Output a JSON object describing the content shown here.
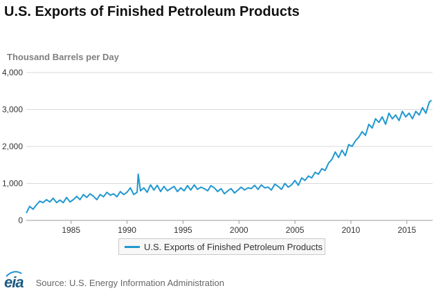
{
  "header": {
    "title": "U.S. Exports of Finished Petroleum Products"
  },
  "footer": {
    "logo_text": "eia",
    "source": "Source: U.S. Energy Information Administration"
  },
  "chart_data": {
    "type": "line",
    "title": "U.S. Exports of Finished Petroleum Products",
    "ylabel": "Thousand Barrels per Day",
    "xlabel": "",
    "xlim": [
      1981,
      2017.3
    ],
    "ylim": [
      0,
      4000
    ],
    "grid": true,
    "legend_position": "bottom",
    "x_ticks": [
      1985,
      1990,
      1995,
      2000,
      2005,
      2010,
      2015
    ],
    "y_ticks": [
      0,
      1000,
      2000,
      3000,
      4000
    ],
    "y_tick_labels": [
      "0",
      "1,000",
      "2,000",
      "3,000",
      "4,000"
    ],
    "series": [
      {
        "name": "U.S. Exports of Finished Petroleum Products",
        "color": "#1f97d0",
        "x": [
          1981.0,
          1981.3,
          1981.6,
          1981.9,
          1982.2,
          1982.5,
          1982.8,
          1983.1,
          1983.4,
          1983.7,
          1984.0,
          1984.3,
          1984.6,
          1984.9,
          1985.2,
          1985.5,
          1985.8,
          1986.1,
          1986.4,
          1986.7,
          1987.0,
          1987.3,
          1987.6,
          1987.9,
          1988.2,
          1988.5,
          1988.8,
          1989.1,
          1989.4,
          1989.7,
          1990.0,
          1990.3,
          1990.6,
          1990.9,
          1991.0,
          1991.2,
          1991.5,
          1991.8,
          1992.1,
          1992.4,
          1992.7,
          1993.0,
          1993.3,
          1993.6,
          1993.9,
          1994.2,
          1994.5,
          1994.8,
          1995.1,
          1995.4,
          1995.7,
          1996.0,
          1996.3,
          1996.6,
          1996.9,
          1997.2,
          1997.5,
          1997.8,
          1998.1,
          1998.4,
          1998.7,
          1999.0,
          1999.3,
          1999.6,
          1999.9,
          2000.2,
          2000.5,
          2000.8,
          2001.1,
          2001.4,
          2001.7,
          2002.0,
          2002.3,
          2002.6,
          2002.9,
          2003.2,
          2003.5,
          2003.8,
          2004.1,
          2004.4,
          2004.7,
          2005.0,
          2005.3,
          2005.6,
          2005.9,
          2006.2,
          2006.5,
          2006.8,
          2007.1,
          2007.4,
          2007.7,
          2008.0,
          2008.3,
          2008.6,
          2008.9,
          2009.2,
          2009.5,
          2009.8,
          2010.1,
          2010.4,
          2010.7,
          2011.0,
          2011.3,
          2011.6,
          2011.9,
          2012.2,
          2012.5,
          2012.8,
          2013.1,
          2013.4,
          2013.7,
          2014.0,
          2014.3,
          2014.6,
          2014.9,
          2015.2,
          2015.5,
          2015.8,
          2016.1,
          2016.4,
          2016.7,
          2017.0,
          2017.2
        ],
        "values": [
          200,
          380,
          300,
          420,
          520,
          480,
          560,
          500,
          600,
          480,
          550,
          480,
          620,
          500,
          560,
          650,
          560,
          700,
          620,
          720,
          650,
          560,
          700,
          640,
          760,
          680,
          720,
          640,
          780,
          700,
          760,
          880,
          700,
          760,
          1250,
          800,
          880,
          760,
          960,
          820,
          950,
          780,
          920,
          800,
          860,
          920,
          780,
          880,
          800,
          940,
          820,
          960,
          840,
          900,
          860,
          800,
          940,
          880,
          780,
          860,
          720,
          800,
          860,
          740,
          820,
          900,
          820,
          880,
          860,
          950,
          840,
          960,
          880,
          900,
          820,
          980,
          920,
          840,
          1000,
          900,
          960,
          1080,
          950,
          1150,
          1080,
          1200,
          1150,
          1300,
          1250,
          1400,
          1350,
          1550,
          1650,
          1850,
          1700,
          1900,
          1750,
          2050,
          2000,
          2150,
          2250,
          2400,
          2300,
          2600,
          2500,
          2750,
          2650,
          2800,
          2600,
          2900,
          2750,
          2850,
          2700,
          2950,
          2800,
          2900,
          2750,
          2950,
          2850,
          3050,
          2900,
          3200,
          3250
        ]
      }
    ]
  }
}
